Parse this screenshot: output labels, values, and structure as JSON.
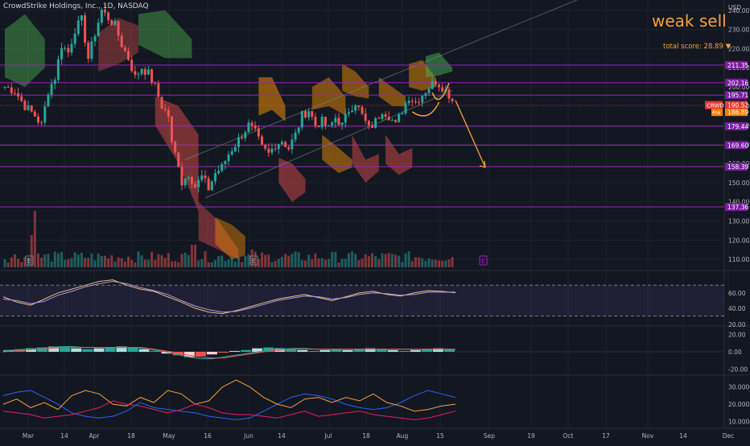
{
  "header": {
    "title": "CrowdStrike Holdings, Inc., 1D, NASDAQ",
    "currency": "USD"
  },
  "signal": {
    "label": "weak sell",
    "score_text": "total score: 28.89 ▼",
    "color": "#f7a23b"
  },
  "colors": {
    "background": "#131722",
    "up": "#26a69a",
    "down": "#ef5350",
    "level_line": "#9c27b0",
    "level_badge": "#7b1fa2",
    "current_badge": "#e53935",
    "pre_badge": "#f57c00",
    "trend": "#f7a23b"
  },
  "chart_data": [
    {
      "type": "candlestick",
      "symbol": "CRWD",
      "y_axis": {
        "min": 105,
        "max": 242,
        "ticks": [
          110,
          120,
          130,
          140,
          150,
          160,
          170,
          180,
          190,
          200,
          210,
          220,
          230,
          240
        ]
      },
      "x_axis": {
        "labels": [
          "Mar",
          "14",
          "Apr",
          "18",
          "May",
          "16",
          "Jun",
          "14",
          "Jul",
          "18",
          "Aug",
          "15",
          "Sep",
          "19",
          "Oct",
          "17",
          "Nov",
          "14",
          "Dec"
        ]
      },
      "close_path": [
        [
          0,
          200
        ],
        [
          3,
          198
        ],
        [
          6,
          190
        ],
        [
          9,
          185
        ],
        [
          11,
          180
        ],
        [
          13,
          198
        ],
        [
          15,
          205
        ],
        [
          17,
          222
        ],
        [
          19,
          218
        ],
        [
          21,
          230
        ],
        [
          23,
          235
        ],
        [
          25,
          215
        ],
        [
          27,
          228
        ],
        [
          29,
          240
        ],
        [
          31,
          236
        ],
        [
          33,
          232
        ],
        [
          35,
          222
        ],
        [
          37,
          215
        ],
        [
          39,
          205
        ],
        [
          41,
          210
        ],
        [
          43,
          207
        ],
        [
          45,
          200
        ],
        [
          47,
          190
        ],
        [
          49,
          185
        ],
        [
          50,
          170
        ],
        [
          52,
          160
        ],
        [
          53,
          150
        ],
        [
          55,
          155
        ],
        [
          57,
          148
        ],
        [
          59,
          153
        ],
        [
          61,
          147
        ],
        [
          63,
          155
        ],
        [
          65,
          158
        ],
        [
          67,
          165
        ],
        [
          69,
          170
        ],
        [
          71,
          175
        ],
        [
          73,
          180
        ],
        [
          75,
          176
        ],
        [
          77,
          168
        ],
        [
          79,
          165
        ],
        [
          81,
          170
        ],
        [
          83,
          172
        ],
        [
          85,
          168
        ],
        [
          87,
          175
        ],
        [
          89,
          185
        ],
        [
          91,
          188
        ],
        [
          93,
          180
        ],
        [
          95,
          182
        ],
        [
          97,
          178
        ],
        [
          99,
          184
        ],
        [
          101,
          180
        ],
        [
          103,
          188
        ],
        [
          105,
          192
        ],
        [
          107,
          185
        ],
        [
          109,
          178
        ],
        [
          111,
          182
        ],
        [
          113,
          188
        ],
        [
          115,
          185
        ],
        [
          117,
          180
        ],
        [
          119,
          188
        ],
        [
          121,
          195
        ],
        [
          123,
          192
        ],
        [
          125,
          196
        ],
        [
          127,
          200
        ],
        [
          129,
          203
        ],
        [
          131,
          200
        ],
        [
          133,
          196
        ],
        [
          134,
          193
        ]
      ],
      "levels": [
        {
          "value": 211.35,
          "label": "211.35"
        },
        {
          "value": 202.16,
          "label": "202.16"
        },
        {
          "value": 195.71,
          "label": "195.71"
        },
        {
          "value": 179.44,
          "label": "179.44"
        },
        {
          "value": 169.6,
          "label": "169.60"
        },
        {
          "value": 158.39,
          "label": "158.39"
        },
        {
          "value": 137.36,
          "label": "137.36"
        }
      ],
      "current_price": {
        "symbol_label": "CRWD",
        "value": 190.52,
        "label": "190.52"
      },
      "premarket_price": {
        "symbol_label": "Pre",
        "value": 186.89,
        "label": "186.89"
      },
      "projection": {
        "from": [
          134,
          193
        ],
        "to": [
          143,
          158
        ]
      },
      "earnings_markers": [
        "E",
        "E",
        "E"
      ]
    },
    {
      "type": "line",
      "name_indicator": "oscillator",
      "y_axis": {
        "min": 20,
        "max": 85,
        "ticks": [
          40.0,
          60.0
        ],
        "tick_labels": [
          "40.00",
          "60.00"
        ],
        "bottom_label": "20.00"
      },
      "band": [
        30,
        70
      ],
      "series": [
        {
          "color": "#e5c07b",
          "values": [
            55,
            48,
            44,
            52,
            60,
            65,
            70,
            75,
            77,
            70,
            65,
            62,
            55,
            48,
            40,
            35,
            33,
            37,
            42,
            47,
            52,
            55,
            58,
            54,
            50,
            55,
            60,
            62,
            58,
            56,
            60,
            63,
            62,
            60
          ]
        },
        {
          "color": "#b39ddb",
          "values": [
            52,
            50,
            46,
            49,
            57,
            62,
            68,
            72,
            75,
            72,
            67,
            63,
            58,
            50,
            43,
            38,
            35,
            36,
            40,
            45,
            50,
            53,
            56,
            55,
            52,
            54,
            58,
            60,
            59,
            57,
            58,
            61,
            61,
            61
          ]
        }
      ]
    },
    {
      "type": "bar",
      "name_indicator": "histogram",
      "y_axis": {
        "min": -25,
        "max": 25,
        "ticks": [
          20.0,
          0.0,
          -20.0
        ],
        "tick_labels": [
          "20.00",
          "0.00",
          "-20.00"
        ]
      },
      "values": [
        2,
        3,
        4,
        5,
        6,
        5,
        4,
        3,
        4,
        5,
        6,
        5,
        3,
        1,
        -2,
        -4,
        -6,
        -5,
        -3,
        -1,
        1,
        2,
        4,
        5,
        4,
        3,
        2,
        1,
        2,
        3,
        2,
        3,
        4,
        3,
        2,
        1,
        2,
        3,
        4,
        3
      ],
      "lines": [
        {
          "color": "#26a69a",
          "values": [
            1,
            2,
            3,
            4,
            5,
            6,
            6,
            5,
            5,
            5,
            5,
            5,
            4,
            2,
            0,
            -3,
            -6,
            -8,
            -8,
            -6,
            -4,
            -2,
            0,
            2,
            3,
            4,
            4,
            3,
            3,
            3,
            3,
            3,
            3,
            3,
            3,
            3,
            3,
            3,
            3,
            3
          ]
        },
        {
          "color": "#ef5350",
          "values": [
            0,
            1,
            2,
            3,
            4,
            5,
            5,
            5,
            5,
            5,
            5,
            5,
            5,
            3,
            1,
            -1,
            -4,
            -6,
            -7,
            -7,
            -5,
            -3,
            -1,
            1,
            2,
            3,
            3,
            3,
            3,
            3,
            3,
            3,
            3,
            3,
            3,
            3,
            3,
            3,
            3,
            3
          ]
        }
      ]
    },
    {
      "type": "line",
      "name_indicator": "directional",
      "y_axis": {
        "min": 7,
        "max": 35,
        "ticks": [
          10.0,
          20.0,
          30.0
        ],
        "tick_labels": [
          "10.0000",
          "20.0000",
          "30.0000"
        ]
      },
      "series": [
        {
          "color": "#2962ff",
          "values": [
            25,
            27,
            28,
            24,
            20,
            15,
            13,
            12,
            13,
            16,
            21,
            18,
            17,
            16,
            15,
            13,
            12,
            11,
            12,
            16,
            20,
            24,
            26,
            25,
            23,
            20,
            18,
            17,
            18,
            21,
            25,
            28,
            26,
            24
          ]
        },
        {
          "color": "#f7a23b",
          "values": [
            20,
            23,
            18,
            21,
            17,
            25,
            28,
            26,
            20,
            19,
            24,
            21,
            28,
            26,
            20,
            22,
            30,
            34,
            30,
            24,
            20,
            18,
            23,
            24,
            21,
            24,
            22,
            26,
            21,
            19,
            16,
            17,
            19,
            20
          ]
        },
        {
          "color": "#e91e63",
          "values": [
            16,
            15,
            14,
            12,
            13,
            14,
            16,
            18,
            22,
            20,
            19,
            17,
            15,
            17,
            20,
            18,
            15,
            14,
            14,
            13,
            12,
            14,
            16,
            13,
            14,
            15,
            16,
            14,
            13,
            12,
            11,
            12,
            14,
            16
          ]
        }
      ]
    }
  ]
}
